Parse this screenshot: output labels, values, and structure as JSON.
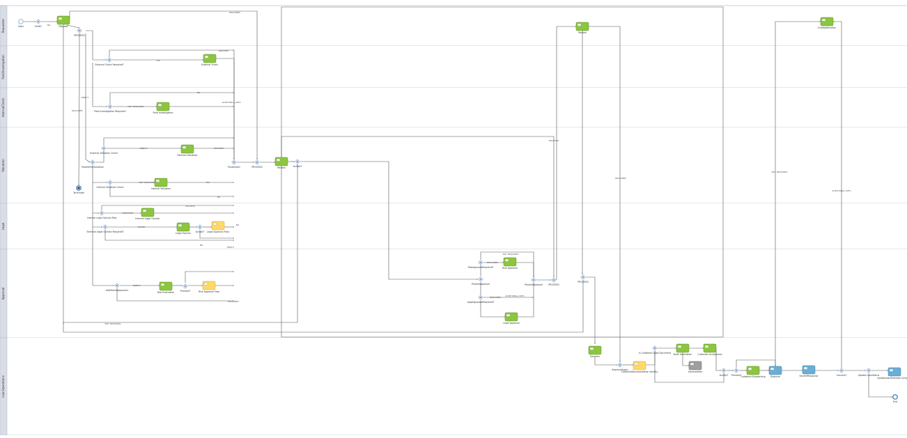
{
  "lanes": [
    {
      "id": "L1",
      "label": "Requester"
    },
    {
      "id": "L2",
      "label": "FieldInvestigation"
    },
    {
      "id": "L3",
      "label": "InternalCheck"
    },
    {
      "id": "L4",
      "label": "Valuation"
    },
    {
      "id": "L5",
      "label": "Legal"
    },
    {
      "id": "L6",
      "label": "Approval"
    },
    {
      "id": "L7",
      "label": "LoanOperations"
    }
  ],
  "nodes": [
    {
      "id": "start",
      "type": "start",
      "label": "Start"
    },
    {
      "id": "g_draft",
      "type": "gateway",
      "label": "Draft?"
    },
    {
      "id": "t_request",
      "type": "task",
      "label": "Request"
    },
    {
      "id": "g_proceed0",
      "type": "gateway",
      "label": "PROCEED"
    },
    {
      "id": "g_ext_req",
      "type": "gateway",
      "label": "External Check Required?"
    },
    {
      "id": "t_ext",
      "type": "task",
      "label": "External Check"
    },
    {
      "id": "g_fi_req",
      "type": "gateway",
      "label": "Field Investigation Required?"
    },
    {
      "id": "t_fi",
      "type": "task",
      "label": "Field Investigation"
    },
    {
      "id": "g_parallel_v",
      "type": "gateway",
      "label": "ParallelForValuation"
    },
    {
      "id": "g_extval_chk",
      "type": "gateway",
      "label": "External Valuation Check"
    },
    {
      "id": "t_extval",
      "type": "task",
      "label": "External Valuation"
    },
    {
      "id": "g_intval_chk",
      "type": "gateway",
      "label": "Internal Valuation Check"
    },
    {
      "id": "t_intval",
      "type": "task",
      "label": "Internal Valuation"
    },
    {
      "id": "end_term",
      "type": "end_term",
      "label": "Terminate"
    },
    {
      "id": "g_parallel_join",
      "type": "gateway",
      "label": "ParallelJoin"
    },
    {
      "id": "g_proceed1",
      "type": "gateway",
      "label": "PROCEED"
    },
    {
      "id": "t_review",
      "type": "task",
      "label": "Review"
    },
    {
      "id": "g_accept",
      "type": "gateway",
      "label": "Accept?"
    },
    {
      "id": "g_intlegal_req",
      "type": "gateway",
      "label": "Internal Legal Opinion Req"
    },
    {
      "id": "t_intlegal",
      "type": "task",
      "label": "Internal Legal Opinion"
    },
    {
      "id": "g_extlegal_req",
      "type": "gateway",
      "label": "External Legal Opinion Required?"
    },
    {
      "id": "t_legal",
      "type": "task",
      "label": "Legal Opinion"
    },
    {
      "id": "g_accept_l",
      "type": "gateway",
      "label": "Accept?"
    },
    {
      "id": "t_legal_appr",
      "type": "task_yellow",
      "label": "Legal Approval Flow"
    },
    {
      "id": "g_add_approv",
      "type": "gateway",
      "label": "AdditionalApprovers"
    },
    {
      "id": "t_risk",
      "type": "task",
      "label": "Risk Evaluation"
    },
    {
      "id": "g_proceed_a",
      "type": "gateway",
      "label": "Proceed?"
    },
    {
      "id": "t_risk_appr",
      "type": "task_yellow",
      "label": "Risk Approval Flow"
    },
    {
      "id": "g_risk_appr_req",
      "type": "gateway",
      "label": "RiskApprovalRequired?"
    },
    {
      "id": "t_risk_appr2",
      "type": "task",
      "label": "Risk Approval"
    },
    {
      "id": "g_par_appr",
      "type": "gateway",
      "label": "ParallelApproval"
    },
    {
      "id": "g_legal_appr_req",
      "type": "gateway",
      "label": "LegalApprovalRequired?"
    },
    {
      "id": "t_legal_appr2",
      "type": "task",
      "label": "Legal Approval"
    },
    {
      "id": "g_par_appr_join",
      "type": "gateway",
      "label": "ParallelApproval"
    },
    {
      "id": "g_proceed_b",
      "type": "gateway",
      "label": "PROCEED"
    },
    {
      "id": "t_review2",
      "type": "task",
      "label": "Review"
    },
    {
      "id": "g_proceed_c",
      "type": "gateway",
      "label": "PROCEED"
    },
    {
      "id": "t_sanction",
      "type": "task",
      "label": "Sanction"
    },
    {
      "id": "g_approval",
      "type": "gateway",
      "label": "ApprovalAgain"
    },
    {
      "id": "t_collateral",
      "type": "task_yellow",
      "label": "CollateralDocumentation Activity"
    },
    {
      "id": "g_collat_req",
      "type": "gateway",
      "label": "Is Collateral Legal Document"
    },
    {
      "id": "t_draft_gen",
      "type": "task",
      "label": "Draft Generation"
    },
    {
      "id": "t_generate_fee",
      "type": "task_gray",
      "label": "GenerateFee"
    },
    {
      "id": "t_customer_acc",
      "type": "task",
      "label": "Customer Acceptance"
    },
    {
      "id": "g_accept2",
      "type": "gateway",
      "label": "Accept?"
    },
    {
      "id": "g_proceed_d",
      "type": "gateway",
      "label": "Proceed?"
    },
    {
      "id": "t_collat_dispatch",
      "type": "task",
      "label": "Collateral Dispatching"
    },
    {
      "id": "t_disburse",
      "type": "task_blue",
      "label": "Disburse"
    },
    {
      "id": "t_send_resp",
      "type": "task_blue",
      "label": "SendOfResponse"
    },
    {
      "id": "g_success",
      "type": "gateway",
      "label": "Success?"
    },
    {
      "id": "g_update",
      "type": "gateway",
      "label": "Update LoanStatus"
    },
    {
      "id": "t_update_status",
      "type": "task_blue",
      "label": "UpdateLoanStatusAs Complete"
    },
    {
      "id": "end",
      "type": "end",
      "label": "End"
    },
    {
      "id": "t_final_notif",
      "type": "task",
      "label": "FinalNotification"
    }
  ],
  "edge_labels": [
    "NO",
    "YES",
    "PROCEED",
    "REJECT",
    "REQUIRED",
    "NOT REQUIRED",
    "ADDITIONAL_INFO",
    "NO",
    "REJECT",
    "PROCEED",
    "REQUIRED",
    "NOT REQUIRED",
    "YES",
    "NO",
    "APPROVED",
    "SUCCESS",
    "FAILED",
    "NO",
    "NO",
    "REJECT",
    "REJECT",
    "REQUIRED",
    "NOT REQUIRED",
    "REQUIRED",
    "NOT REQUIRED",
    "REQUIRED",
    "ADDITIONAL_INFO",
    "PROCEED",
    "REQUIRED",
    "NOT REQUIRED",
    "ADDITIONAL_INFO"
  ],
  "colors": {
    "task_green": "#8cc63f",
    "task_yellow": "#ffd966",
    "task_blue": "#6aaed6",
    "task_gray": "#9e9e9e",
    "gateway": "#d4e2f4",
    "lane_header": "#d9dde6",
    "lane_line": "#b9c1cc",
    "edge": "#555555"
  }
}
